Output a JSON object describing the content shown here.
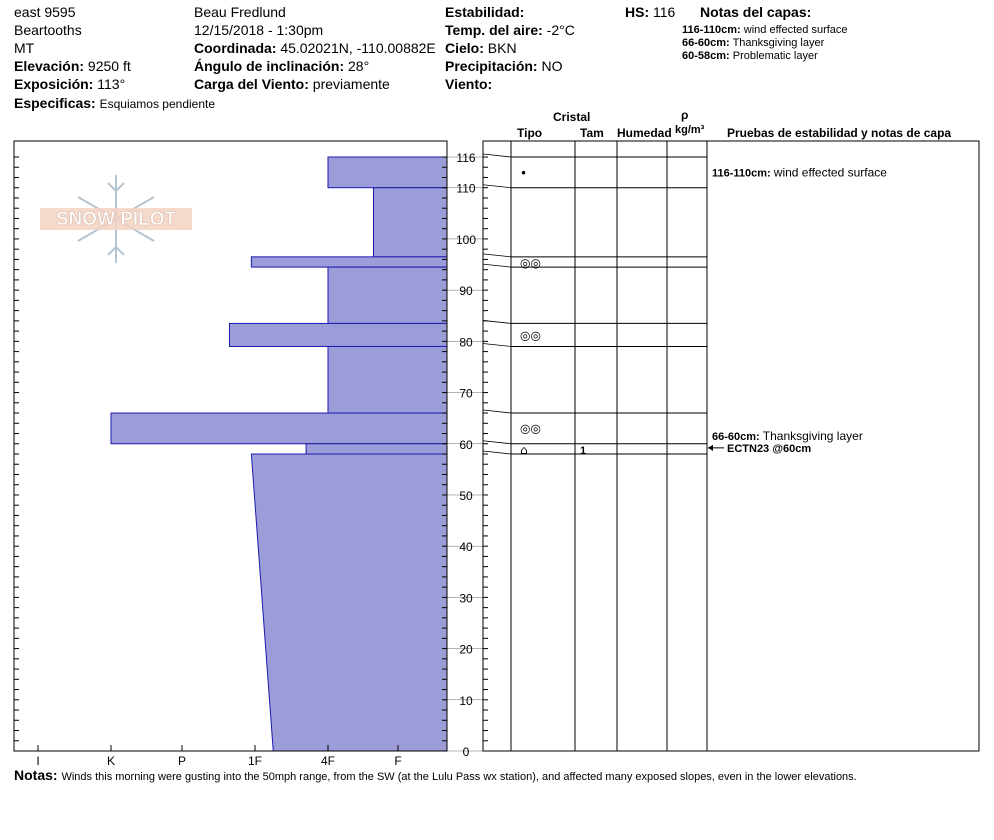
{
  "header": {
    "location": "east 9595",
    "range": "Beartooths",
    "state": "MT",
    "elevation_label": "Elevación:",
    "elevation_value": "9250 ft",
    "aspect_label": "Exposición:",
    "aspect_value": "113°",
    "specifics_label": "Especificas:",
    "specifics_value": "Esquiamos pendiente",
    "observer": "Beau  Fredlund",
    "datetime": "12/15/2018 - 1:30pm",
    "coord_label": "Coordinada:",
    "coord_value": "45.02021N, -110.00882E",
    "slope_label": "Ángulo de inclinación:",
    "slope_value": "28°",
    "wind_load_label": "Carga del Viento:",
    "wind_load_value": "previamente",
    "stability_label": "Estabilidad:",
    "air_temp_label": "Temp. del aire:",
    "air_temp_value": "-2°C",
    "sky_label": "Cielo:",
    "sky_value": "BKN",
    "precip_label": "Precipitación:",
    "precip_value": "NO",
    "wind_label": "Viento:",
    "hs_label": "HS:",
    "hs_value": "116",
    "layer_notes_title": "Notas del capas:",
    "layer_notes": [
      {
        "range": "116-110cm:",
        "text": "wind effected surface"
      },
      {
        "range": "66-60cm:",
        "text": "Thanksgiving layer"
      },
      {
        "range": "60-58cm:",
        "text": "Problematic layer"
      }
    ]
  },
  "logo_text": "SNOW PILOT",
  "columns": {
    "crystal": "Cristal",
    "type": "Tipo",
    "size": "Tam",
    "moisture": "Humedad",
    "rho": "ρ",
    "density_unit": "kg/m³",
    "tests_title": "Pruebas de estabilidad y notas de capa"
  },
  "hand_hardness_scale": [
    "I",
    "K",
    "P",
    "1F",
    "4F",
    "F"
  ],
  "chart_data": {
    "type": "bar",
    "title": "",
    "xlabel": "",
    "ylabel": "",
    "ylim": [
      0,
      116
    ],
    "y_ticks": [
      116,
      110,
      100,
      90,
      80,
      70,
      60,
      50,
      40,
      30,
      20,
      10,
      0
    ],
    "x_categories": [
      "I",
      "K",
      "P",
      "1F",
      "4F",
      "F"
    ],
    "layers": [
      {
        "top": 116,
        "bottom": 110,
        "hardness": 4.0
      },
      {
        "top": 110,
        "bottom": 96.5,
        "hardness": 4.65
      },
      {
        "top": 96.5,
        "bottom": 94.5,
        "hardness": 2.95
      },
      {
        "top": 94.5,
        "bottom": 83.5,
        "hardness": 4.0
      },
      {
        "top": 83.5,
        "bottom": 79,
        "hardness": 2.65
      },
      {
        "top": 79,
        "bottom": 66,
        "hardness": 4.0
      },
      {
        "top": 66,
        "bottom": 60,
        "hardness": 1.0
      },
      {
        "top": 60,
        "bottom": 58,
        "hardness": 3.7
      },
      {
        "top": 58,
        "bottom": 0,
        "hardness_top": 2.95,
        "hardness_bottom": 3.25
      }
    ],
    "layer_boundaries": [
      116,
      110,
      96.5,
      94.5,
      83.5,
      79,
      66,
      60,
      58
    ],
    "grain_forms": [
      {
        "y": 113,
        "symbol": "•",
        "size": ""
      },
      {
        "y": 95.5,
        "symbol": "◎◎",
        "size": ""
      },
      {
        "y": 81.3,
        "symbol": "◎◎",
        "size": ""
      },
      {
        "y": 63.2,
        "symbol": "◎◎",
        "size": ""
      },
      {
        "y": 59,
        "symbol": "⌂",
        "size": "1"
      }
    ],
    "annotations": [
      {
        "y": 113,
        "range": "116-110cm:",
        "text": "wind effected surface"
      },
      {
        "y": 61.5,
        "range": "66-60cm:",
        "text": "Thanksgiving layer"
      }
    ],
    "stability_tests": [
      {
        "y": 59.2,
        "text": "ECTN23 @60cm"
      }
    ]
  },
  "notes_label": "Notas:",
  "notes_text": "Winds this morning were gusting into the 50mph range, from the SW (at the Lulu Pass wx station), and affected many exposed slopes, even in the lower elevations."
}
